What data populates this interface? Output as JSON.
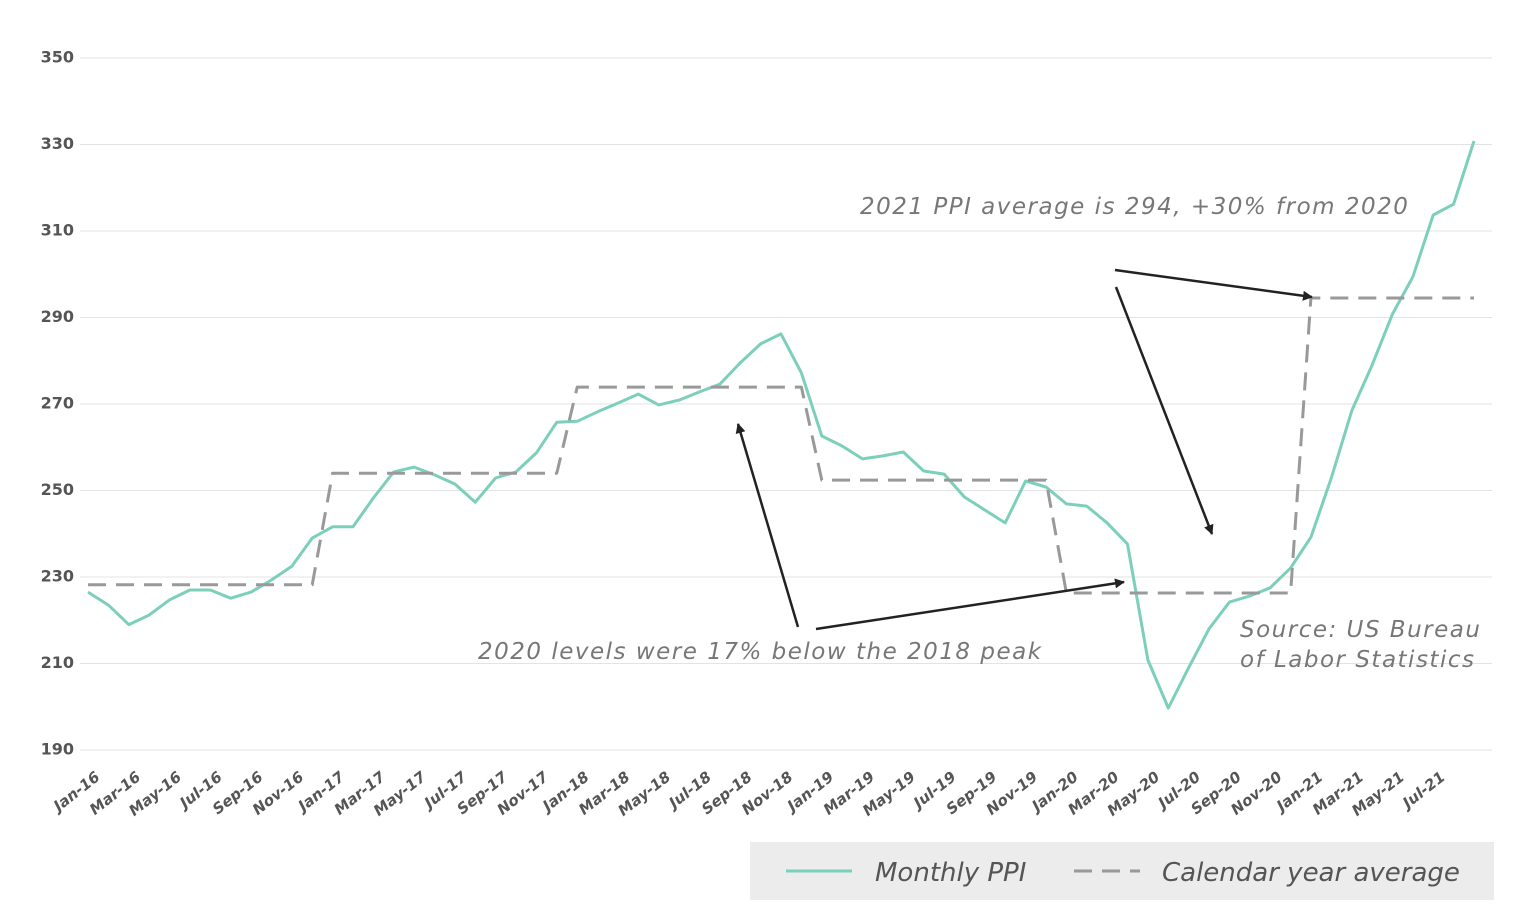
{
  "chart_data": {
    "type": "line",
    "categories": [
      "Jan-16",
      null,
      "Mar-16",
      null,
      "May-16",
      null,
      "Jul-16",
      null,
      "Sep-16",
      null,
      "Nov-16",
      null,
      "Jan-17",
      null,
      "Mar-17",
      null,
      "May-17",
      null,
      "Jul-17",
      null,
      "Sep-17",
      null,
      "Nov-17",
      null,
      "Jan-18",
      null,
      "Mar-18",
      null,
      "May-18",
      null,
      "Jul-18",
      null,
      "Sep-18",
      null,
      "Nov-18",
      null,
      "Jan-19",
      null,
      "Mar-19",
      null,
      "May-19",
      null,
      "Jul-19",
      null,
      "Sep-19",
      null,
      "Nov-19",
      null,
      "Jan-20",
      null,
      "Mar-20",
      null,
      "May-20",
      null,
      "Jul-20",
      null,
      "Sep-20",
      null,
      "Nov-20",
      null,
      "Jan-21",
      null,
      "Mar-21",
      null,
      "May-21",
      null,
      "Jul-21",
      null,
      null
    ],
    "series": [
      {
        "name": "Monthly PPI",
        "color": "#7ccfbb",
        "dashed": false,
        "values": [
          226.5,
          223.5,
          219,
          221.2,
          224.7,
          227,
          227,
          225.1,
          226.5,
          229.3,
          232.5,
          239,
          241.6,
          241.6,
          248.3,
          254.3,
          255.4,
          253.6,
          251.5,
          247.3,
          252.9,
          254.3,
          258.7,
          265.8,
          266,
          268.2,
          270.2,
          272.3,
          269.8,
          270.9,
          272.8,
          274.6,
          279.5,
          283.9,
          286.2,
          277.2,
          262.6,
          260.3,
          257.3,
          258,
          258.9,
          254.5,
          253.8,
          248.5,
          245.5,
          242.5,
          252.2,
          250.8,
          246.9,
          246.4,
          242.5,
          237.6,
          210.8,
          199.7,
          209,
          218,
          224.2,
          225.6,
          227.5,
          232.1,
          239.2,
          252.9,
          268.4,
          279,
          290.8,
          299.4,
          313.7,
          316.2,
          330.8
        ]
      },
      {
        "name": "Calendar year average",
        "color": "#999999",
        "dashed": true,
        "values": [
          228.2,
          228.2,
          228.2,
          228.2,
          228.2,
          228.2,
          228.2,
          228.2,
          228.2,
          228.2,
          228.2,
          228.2,
          254,
          254,
          254,
          254,
          254,
          254,
          254,
          254,
          254,
          254,
          254,
          254,
          273.9,
          273.9,
          273.9,
          273.9,
          273.9,
          273.9,
          273.9,
          273.9,
          273.9,
          273.9,
          273.9,
          273.9,
          252.4,
          252.4,
          252.4,
          252.4,
          252.4,
          252.4,
          252.4,
          252.4,
          252.4,
          252.4,
          252.4,
          252.4,
          226.3,
          226.3,
          226.3,
          226.3,
          226.3,
          226.3,
          226.3,
          226.3,
          226.3,
          226.3,
          226.3,
          226.3,
          294.5,
          294.5,
          294.5,
          294.5,
          294.5,
          294.5,
          294.5,
          294.5,
          294.5
        ]
      }
    ],
    "ylim": [
      190,
      350
    ],
    "yticks": [
      190,
      210,
      230,
      250,
      270,
      290,
      310,
      330,
      350
    ],
    "grid": true,
    "legend": "bottom-right",
    "annotations": [
      "2021 PPI average is 294, +30% from 2020",
      "2020 levels were 17% below the 2018 peak"
    ],
    "source": [
      "Source: US Bureau",
      "of Labor Statistics"
    ]
  }
}
